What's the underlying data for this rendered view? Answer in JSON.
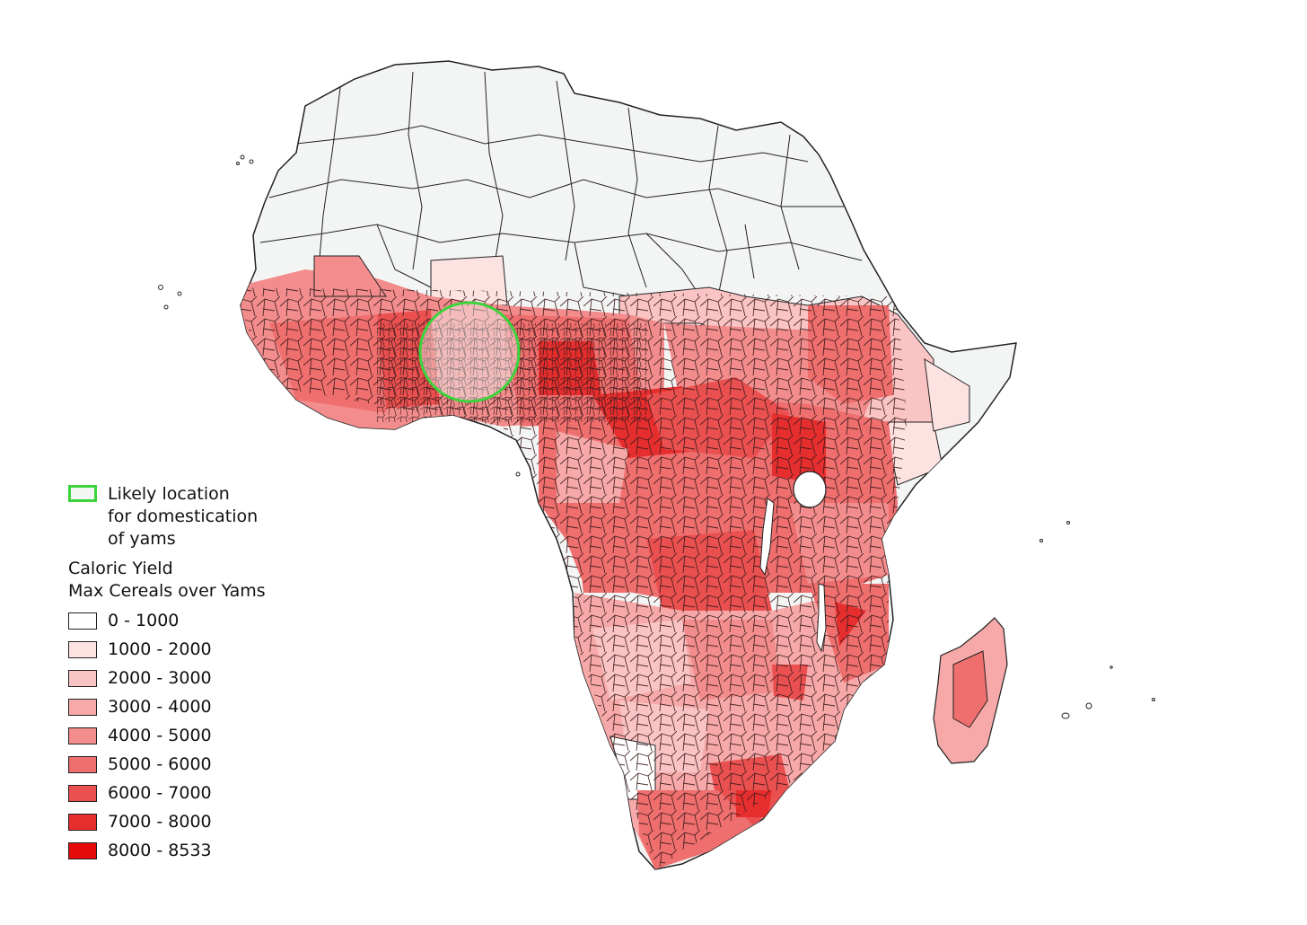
{
  "site_legend": {
    "lines": [
      "Likely location",
      "for domestication",
      "of yams"
    ],
    "color": "#3bd43b"
  },
  "legend": {
    "title_lines": [
      "Caloric Yield",
      "Max Cereals over Yams"
    ],
    "classes": [
      {
        "label": "0 - 1000",
        "color": "#ffffff"
      },
      {
        "label": "1000 - 2000",
        "color": "#fde2e2"
      },
      {
        "label": "2000 - 3000",
        "color": "#fbc4c4"
      },
      {
        "label": "3000 - 4000",
        "color": "#f7a9a9"
      },
      {
        "label": "4000 - 5000",
        "color": "#f38d8d"
      },
      {
        "label": "5000 - 6000",
        "color": "#ef6e6e"
      },
      {
        "label": "6000 - 7000",
        "color": "#eb5050"
      },
      {
        "label": "7000 - 8000",
        "color": "#e72e2e"
      },
      {
        "label": "8000 - 8533",
        "color": "#e60b0b"
      }
    ]
  },
  "map_colors": {
    "sahara": "#f3f5f4",
    "border": "#222222"
  }
}
